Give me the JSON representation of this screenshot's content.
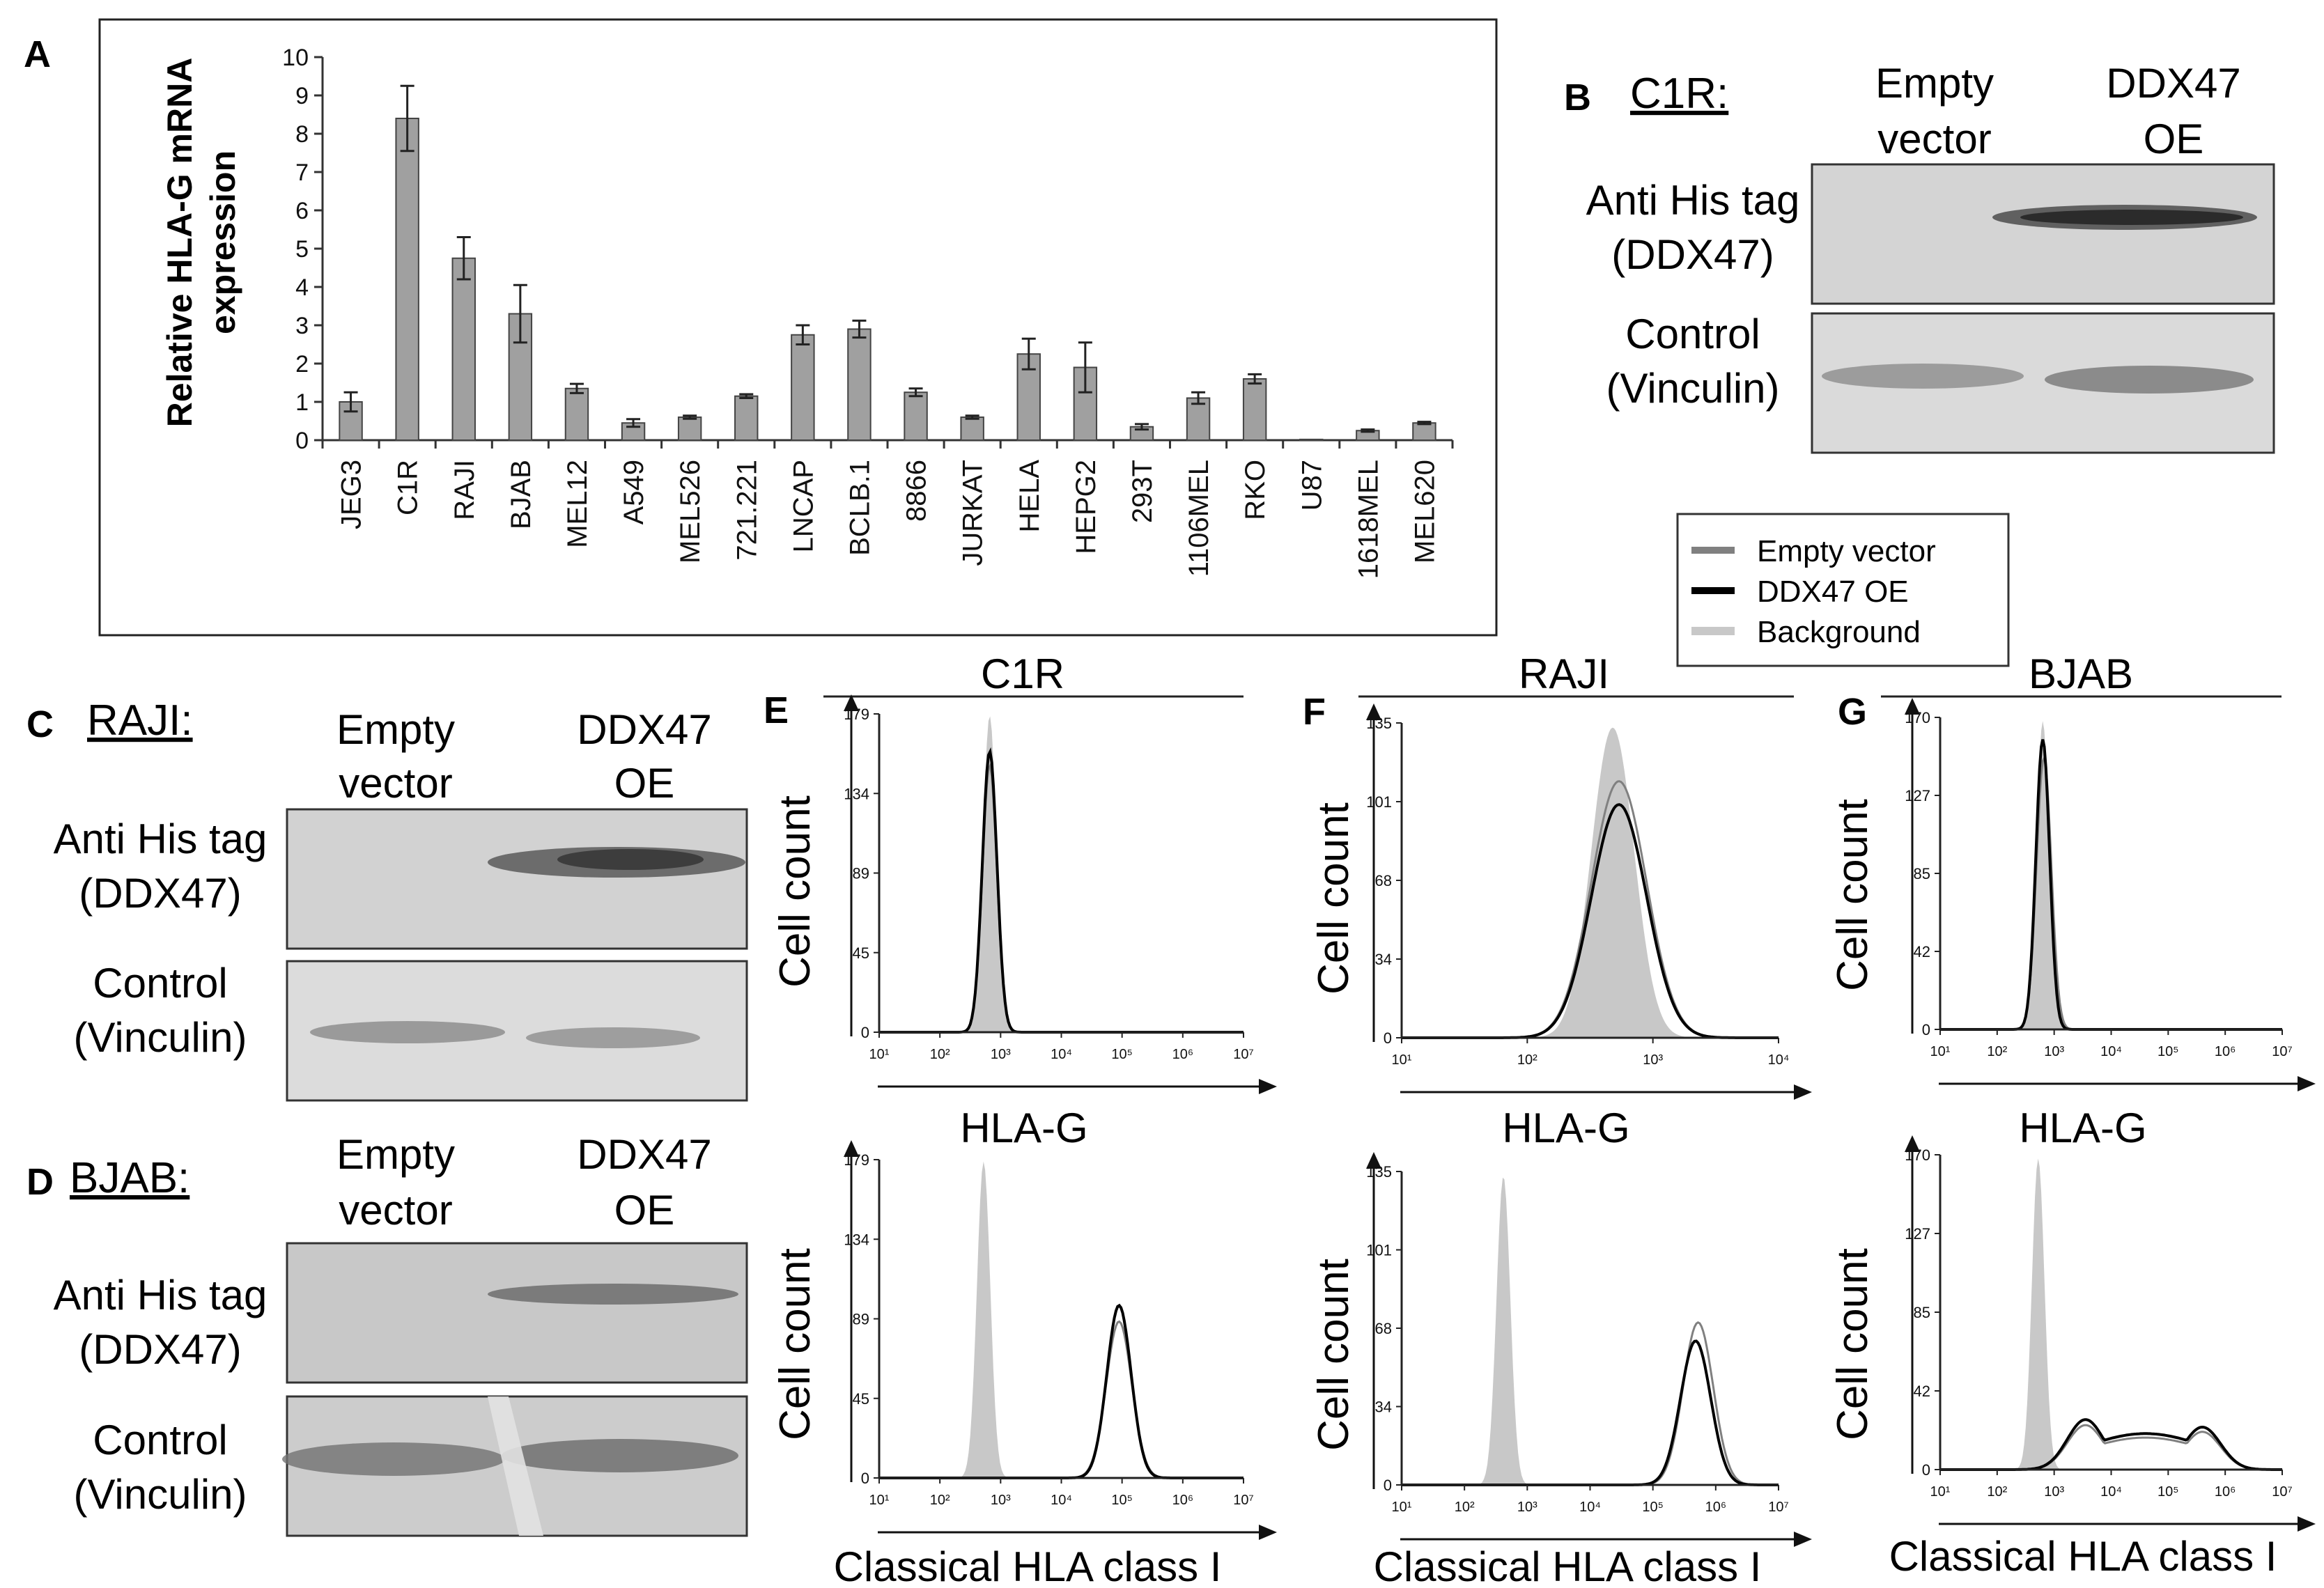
{
  "panels": {
    "A": {
      "label": "A"
    },
    "B": {
      "label": "B",
      "cell_line": "C1R:",
      "lanes": [
        "Empty",
        "vector",
        "DDX47",
        "OE"
      ],
      "rows": [
        {
          "l1": "Anti His tag",
          "l2": "(DDX47)"
        },
        {
          "l1": "Control",
          "l2": "(Vinculin)"
        }
      ]
    },
    "C": {
      "label": "C",
      "cell_line": "RAJI:",
      "lanes": [
        "Empty",
        "vector",
        "DDX47",
        "OE"
      ],
      "rows": [
        {
          "l1": "Anti His tag",
          "l2": "(DDX47)"
        },
        {
          "l1": "Control",
          "l2": "(Vinculin)"
        }
      ]
    },
    "D": {
      "label": "D",
      "cell_line": "BJAB:",
      "lanes": [
        "Empty",
        "vector",
        "DDX47",
        "OE"
      ],
      "rows": [
        {
          "l1": "Anti His tag",
          "l2": "(DDX47)"
        },
        {
          "l1": "Control",
          "l2": "(Vinculin)"
        }
      ]
    },
    "E": {
      "label": "E",
      "cell_line": "C1R",
      "top_xlabel": "HLA-G",
      "bottom_xlabel": "Classical HLA class I",
      "ylabel": "Cell count",
      "top_yticks": [
        "179",
        "134",
        "89",
        "45",
        "0"
      ],
      "bottom_yticks": [
        "179",
        "134",
        "89",
        "45",
        "0"
      ]
    },
    "F": {
      "label": "F",
      "cell_line": "RAJI",
      "top_xlabel": "HLA-G",
      "bottom_xlabel": "Classical HLA class I",
      "ylabel": "Cell count",
      "top_yticks": [
        "135",
        "101",
        "68",
        "34",
        "0"
      ],
      "bottom_yticks": [
        "135",
        "101",
        "68",
        "34",
        "0"
      ]
    },
    "G": {
      "label": "G",
      "cell_line": "BJAB",
      "top_xlabel": "HLA-G",
      "bottom_xlabel": "Classical HLA class I",
      "ylabel": "Cell count",
      "top_yticks": [
        "170",
        "127",
        "85",
        "42",
        "0"
      ],
      "bottom_yticks": [
        "170",
        "127",
        "85",
        "42",
        "0"
      ]
    }
  },
  "legend": {
    "items": [
      "Empty vector",
      "DDX47 OE",
      "Background"
    ]
  },
  "colors": {
    "bar": "#a0a0a0",
    "empty_vector": "#808080",
    "ddx47": "#000000",
    "background": "#c8c8c8"
  },
  "chart_data": [
    {
      "type": "bar",
      "title": "",
      "ylabel": "Relative HLA-G mRNA expression",
      "ylabel_lines": [
        "Relative HLA-G mRNA",
        "expression"
      ],
      "xlabel": "",
      "ylim": [
        0,
        10
      ],
      "yticks": [
        0,
        1,
        2,
        3,
        4,
        5,
        6,
        7,
        8,
        9,
        10
      ],
      "categories": [
        "JEG3",
        "C1R",
        "RAJI",
        "BJAB",
        "MEL12",
        "A549",
        "MEL526",
        "721.221",
        "LNCAP",
        "BCLB.1",
        "8866",
        "JURKAT",
        "HELA",
        "HEPG2",
        "293T",
        "1106MEL",
        "RKO",
        "U87",
        "1618MEL",
        "MEL620"
      ],
      "values": [
        1.0,
        8.4,
        4.75,
        3.3,
        1.35,
        0.45,
        0.6,
        1.15,
        2.75,
        2.9,
        1.25,
        0.6,
        2.25,
        1.9,
        0.35,
        1.1,
        1.6,
        0.02,
        0.25,
        0.45
      ],
      "errors": [
        0.25,
        0.85,
        0.55,
        0.75,
        0.12,
        0.1,
        0.04,
        0.05,
        0.25,
        0.22,
        0.1,
        0.04,
        0.4,
        0.65,
        0.07,
        0.15,
        0.12,
        0.0,
        0.03,
        0.03
      ]
    },
    {
      "type": "line",
      "panel": "E-top",
      "title": "C1R",
      "xlabel": "HLA-G",
      "ylabel": "Cell count",
      "xscale": "log",
      "xlim": [
        10,
        10000000
      ],
      "ylim": [
        0,
        179
      ],
      "series": [
        {
          "name": "Background",
          "peak_log": 2.82,
          "width": 0.11,
          "height": 178
        },
        {
          "name": "Empty vector",
          "peak_log": 2.82,
          "width": 0.12,
          "height": 150
        },
        {
          "name": "DDX47 OE",
          "peak_log": 2.82,
          "width": 0.12,
          "height": 158
        }
      ]
    },
    {
      "type": "line",
      "panel": "E-bottom",
      "title": "",
      "xlabel": "Classical HLA class I",
      "ylabel": "Cell count",
      "xscale": "log",
      "xlim": [
        10,
        10000000
      ],
      "ylim": [
        0,
        179
      ],
      "series": [
        {
          "name": "Background",
          "peak_log": 2.72,
          "width": 0.11,
          "height": 178
        },
        {
          "name": "Empty vector",
          "peak_log": 4.95,
          "width": 0.21,
          "height": 88
        },
        {
          "name": "DDX47 OE",
          "peak_log": 4.95,
          "width": 0.2,
          "height": 97
        }
      ]
    },
    {
      "type": "line",
      "panel": "F-top",
      "title": "RAJI",
      "xlabel": "HLA-G",
      "ylabel": "Cell count",
      "xscale": "log",
      "xlim": [
        10,
        10000
      ],
      "ylim": [
        0,
        135
      ],
      "series": [
        {
          "name": "Background",
          "peak_log": 2.68,
          "width": 0.17,
          "height": 133
        },
        {
          "name": "Empty vector",
          "peak_log": 2.73,
          "width": 0.22,
          "height": 110
        },
        {
          "name": "DDX47 OE",
          "peak_log": 2.73,
          "width": 0.22,
          "height": 100
        }
      ]
    },
    {
      "type": "line",
      "panel": "F-bottom",
      "title": "",
      "xlabel": "Classical HLA class I",
      "ylabel": "Cell count",
      "xscale": "log",
      "xlim": [
        10,
        10000000
      ],
      "ylim": [
        0,
        135
      ],
      "series": [
        {
          "name": "Background",
          "peak_log": 2.62,
          "width": 0.11,
          "height": 133
        },
        {
          "name": "Empty vector",
          "peak_log": 5.72,
          "width": 0.24,
          "height": 70
        },
        {
          "name": "DDX47 OE",
          "peak_log": 5.68,
          "width": 0.24,
          "height": 62
        }
      ]
    },
    {
      "type": "line",
      "panel": "G-top",
      "title": "BJAB",
      "xlabel": "HLA-G",
      "ylabel": "Cell count",
      "xscale": "log",
      "xlim": [
        10,
        10000000
      ],
      "ylim": [
        0,
        170
      ],
      "series": [
        {
          "name": "Background",
          "peak_log": 2.8,
          "width": 0.11,
          "height": 168
        },
        {
          "name": "Empty vector",
          "peak_log": 2.82,
          "width": 0.13,
          "height": 148
        },
        {
          "name": "DDX47 OE",
          "peak_log": 2.8,
          "width": 0.12,
          "height": 158
        }
      ]
    },
    {
      "type": "line",
      "panel": "G-bottom",
      "title": "",
      "xlabel": "Classical HLA class I",
      "ylabel": "Cell count",
      "xscale": "log",
      "xlim": [
        10,
        10000000
      ],
      "ylim": [
        0,
        170
      ],
      "series": [
        {
          "name": "Background",
          "peak_log": 2.72,
          "width": 0.11,
          "height": 168
        },
        {
          "name": "Empty vector",
          "peak_log": 4.4,
          "width": 1.4,
          "height": 24,
          "shape": "broad"
        },
        {
          "name": "DDX47 OE",
          "peak_log": 4.4,
          "width": 1.4,
          "height": 27,
          "shape": "broad"
        }
      ]
    }
  ]
}
